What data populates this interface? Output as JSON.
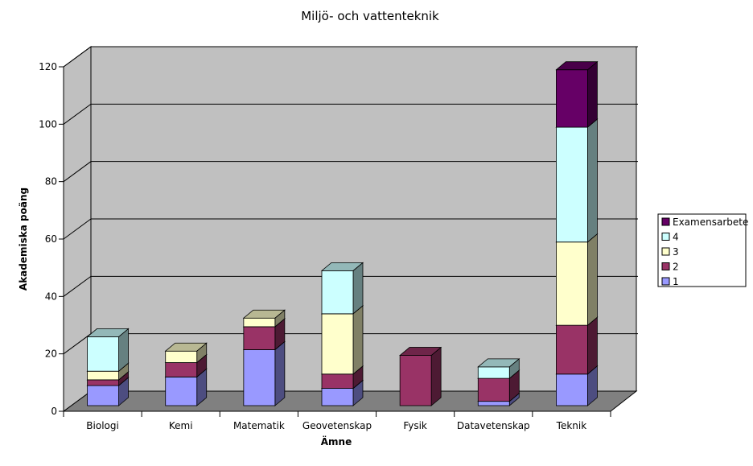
{
  "chart_data": {
    "type": "bar",
    "stacked": true,
    "three_d": true,
    "title": "Miljö- och vattenteknik",
    "xlabel": "Ämne",
    "ylabel": "Akademiska poäng",
    "ylim": [
      0,
      120
    ],
    "yticks": [
      0,
      20,
      40,
      60,
      80,
      100,
      120
    ],
    "grid": true,
    "legend_position": "right",
    "categories": [
      "Biologi",
      "Kemi",
      "Matematik",
      "Geovetenskap",
      "Fysik",
      "Datavetenskap",
      "Teknik"
    ],
    "series": [
      {
        "name": "1",
        "color": "#9999ff",
        "values": [
          7,
          10,
          19.5,
          6,
          0,
          1.5,
          11
        ]
      },
      {
        "name": "2",
        "color": "#993366",
        "values": [
          2,
          5,
          8,
          5,
          17.5,
          8,
          17
        ]
      },
      {
        "name": "3",
        "color": "#ffffcc",
        "values": [
          3,
          4,
          3,
          21,
          0,
          0,
          29
        ]
      },
      {
        "name": "4",
        "color": "#ccffff",
        "values": [
          12,
          0,
          0,
          15,
          0,
          4,
          40
        ]
      },
      {
        "name": "Examensarbete",
        "color": "#660066",
        "values": [
          0,
          0,
          0,
          0,
          0,
          0,
          20
        ]
      }
    ]
  }
}
